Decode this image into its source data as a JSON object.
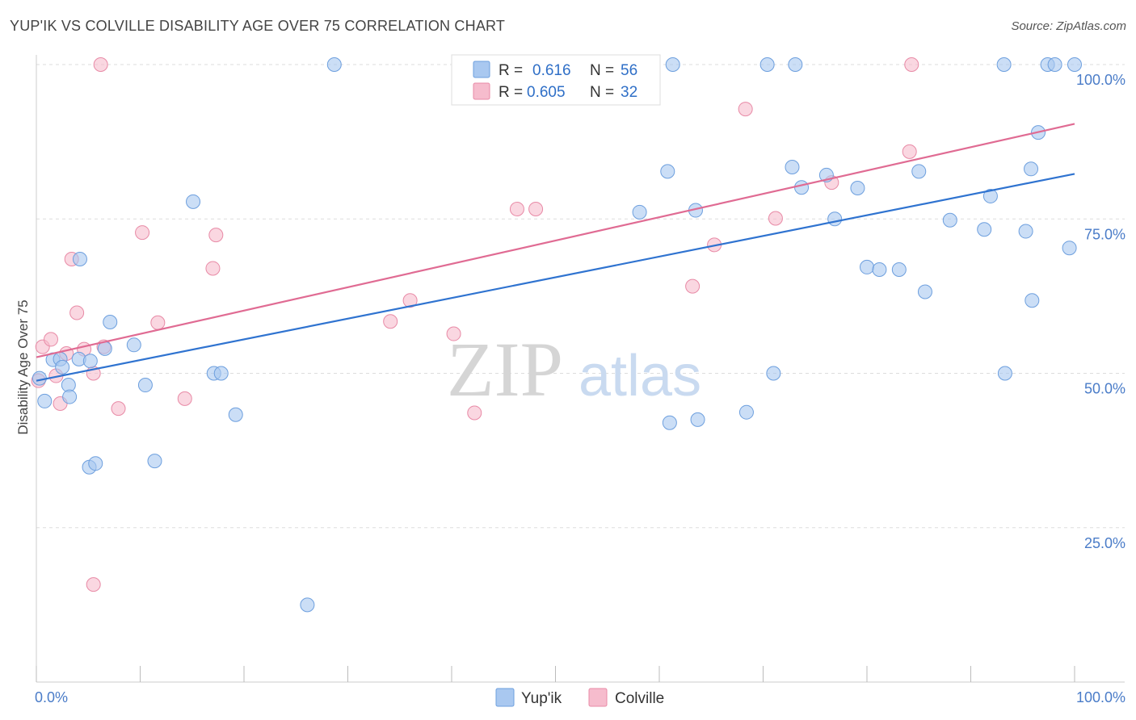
{
  "header": {
    "title": "YUP'IK VS COLVILLE DISABILITY AGE OVER 75 CORRELATION CHART",
    "source": "Source: ZipAtlas.com"
  },
  "watermark": {
    "zip": "ZIP",
    "atlas": "atlas"
  },
  "legend_top": {
    "rows": [
      {
        "r_label": "R =",
        "r_value": "0.616",
        "n_label": "N =",
        "n_value": "56"
      },
      {
        "r_label": "R =",
        "r_value": "0.605",
        "n_label": "N =",
        "n_value": "32"
      }
    ]
  },
  "legend_bottom": {
    "items": [
      "Yup'ik",
      "Colville"
    ]
  },
  "colors": {
    "yupik_fill": "#a9c8f0",
    "yupik_stroke": "#6d9fde",
    "yupik_line": "#2f73d0",
    "colville_fill": "#f6bccd",
    "colville_stroke": "#e88aa6",
    "colville_line": "#e06b93",
    "grid": "#dddddd",
    "axis_text": "#4a7cc8"
  },
  "chart_data": {
    "type": "scatter",
    "title": "YUP'IK VS COLVILLE DISABILITY AGE OVER 75 CORRELATION CHART",
    "xlabel": "",
    "ylabel": "Disability Age Over 75",
    "xlim": [
      0,
      100
    ],
    "ylim": [
      0,
      100
    ],
    "x_tick_labels": [
      "0.0%",
      "100.0%"
    ],
    "y_tick_labels": [
      "100.0%",
      "75.0%",
      "50.0%",
      "25.0%"
    ],
    "y_ticks": [
      100,
      75,
      50,
      25
    ],
    "grid": true,
    "series": [
      {
        "name": "Yup'ik",
        "r": 0.616,
        "n": 56,
        "trend": {
          "x": [
            0,
            100
          ],
          "y": [
            48.8,
            82.3
          ]
        },
        "points": [
          [
            0.3,
            49.2
          ],
          [
            0.8,
            45.5
          ],
          [
            1.6,
            52.2
          ],
          [
            2.3,
            52.3
          ],
          [
            3.1,
            48.1
          ],
          [
            3.2,
            46.2
          ],
          [
            4.1,
            52.3
          ],
          [
            5.2,
            52.0
          ],
          [
            4.2,
            68.5
          ],
          [
            6.6,
            54.0
          ],
          [
            7.1,
            58.3
          ],
          [
            5.1,
            34.8
          ],
          [
            5.7,
            35.4
          ],
          [
            9.4,
            54.6
          ],
          [
            10.5,
            48.1
          ],
          [
            11.4,
            35.8
          ],
          [
            15.1,
            77.8
          ],
          [
            17.1,
            50.0
          ],
          [
            17.8,
            50.0
          ],
          [
            19.2,
            43.3
          ],
          [
            26.1,
            12.5
          ],
          [
            28.7,
            100.0
          ],
          [
            58.1,
            76.1
          ],
          [
            60.8,
            82.7
          ],
          [
            61.0,
            42.0
          ],
          [
            61.3,
            100.0
          ],
          [
            63.5,
            76.4
          ],
          [
            63.7,
            42.5
          ],
          [
            68.4,
            43.7
          ],
          [
            70.4,
            100.0
          ],
          [
            71.0,
            50.0
          ],
          [
            73.1,
            100.0
          ],
          [
            72.8,
            83.4
          ],
          [
            73.7,
            80.1
          ],
          [
            76.1,
            82.1
          ],
          [
            76.9,
            75.0
          ],
          [
            79.1,
            80.0
          ],
          [
            80.0,
            67.2
          ],
          [
            81.2,
            66.8
          ],
          [
            83.1,
            66.8
          ],
          [
            85.0,
            82.7
          ],
          [
            85.6,
            63.2
          ],
          [
            88.0,
            74.8
          ],
          [
            91.3,
            73.3
          ],
          [
            91.9,
            78.7
          ],
          [
            93.2,
            100.0
          ],
          [
            93.3,
            50.0
          ],
          [
            95.3,
            73.0
          ],
          [
            95.8,
            83.1
          ],
          [
            95.9,
            61.8
          ],
          [
            96.5,
            89.0
          ],
          [
            97.4,
            100.0
          ],
          [
            98.1,
            100.0
          ],
          [
            99.5,
            70.3
          ],
          [
            100.0,
            100.0
          ],
          [
            2.5,
            51.0
          ]
        ]
      },
      {
        "name": "Colville",
        "r": 0.605,
        "n": 32,
        "trend": {
          "x": [
            0,
            100
          ],
          "y": [
            52.6,
            90.4
          ]
        },
        "points": [
          [
            0.2,
            48.8
          ],
          [
            0.6,
            54.3
          ],
          [
            1.4,
            55.5
          ],
          [
            1.9,
            49.6
          ],
          [
            2.3,
            45.1
          ],
          [
            2.9,
            53.2
          ],
          [
            3.4,
            68.5
          ],
          [
            3.9,
            59.8
          ],
          [
            4.6,
            53.9
          ],
          [
            5.5,
            50.0
          ],
          [
            5.5,
            15.8
          ],
          [
            6.2,
            100.0
          ],
          [
            6.5,
            54.3
          ],
          [
            7.9,
            44.3
          ],
          [
            10.2,
            72.8
          ],
          [
            11.7,
            58.2
          ],
          [
            14.3,
            45.9
          ],
          [
            17.0,
            67.0
          ],
          [
            17.3,
            72.4
          ],
          [
            34.1,
            58.4
          ],
          [
            36.0,
            61.8
          ],
          [
            40.2,
            56.4
          ],
          [
            42.2,
            43.6
          ],
          [
            46.3,
            76.6
          ],
          [
            48.1,
            76.6
          ],
          [
            63.2,
            64.1
          ],
          [
            65.3,
            70.8
          ],
          [
            68.3,
            92.8
          ],
          [
            71.2,
            75.1
          ],
          [
            76.6,
            80.9
          ],
          [
            84.3,
            100.0
          ],
          [
            84.1,
            85.9
          ]
        ]
      }
    ]
  }
}
